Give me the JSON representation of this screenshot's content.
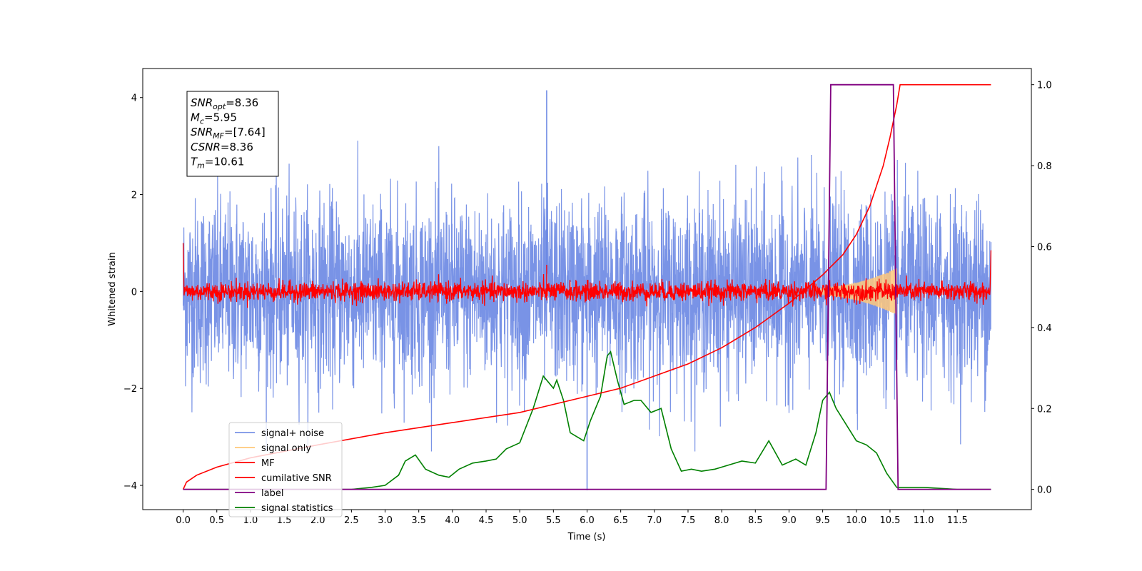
{
  "chart_data": {
    "type": "line",
    "title": "",
    "xlabel": "Time (s)",
    "ylabel": "Whitened strain",
    "y2label": "",
    "xlim": [
      -0.6,
      12.6
    ],
    "ylim": [
      -4.5,
      4.6
    ],
    "y2lim": [
      -0.05,
      1.04
    ],
    "xticks": [
      "0.0",
      "0.5",
      "1.0",
      "1.5",
      "2.0",
      "2.5",
      "3.0",
      "3.5",
      "4.0",
      "4.5",
      "5.0",
      "5.5",
      "6.0",
      "6.5",
      "7.0",
      "7.5",
      "8.0",
      "8.5",
      "9.0",
      "9.5",
      "10.0",
      "10.5",
      "11.0",
      "11.5"
    ],
    "yticks": [
      "−4",
      "−2",
      "0",
      "2",
      "4"
    ],
    "y2ticks": [
      "0.0",
      "0.2",
      "0.4",
      "0.6",
      "0.8",
      "1.0"
    ],
    "grid": false,
    "legend_position": "lower-left",
    "legend": [
      {
        "name": "signal+ noise",
        "color": "#6a87e3"
      },
      {
        "name": "signal only",
        "color": "#ffc87a"
      },
      {
        "name": "MF",
        "color": "#ff0000"
      },
      {
        "name": "cumilative SNR",
        "color": "#ff0000"
      },
      {
        "name": "label",
        "color": "#800080"
      },
      {
        "name": "signal statistics",
        "color": "#008000"
      }
    ],
    "annotation": [
      {
        "base": "SNR",
        "sub": "opt",
        "value": "=8.36"
      },
      {
        "base": "M",
        "sub": "c",
        "value": "=5.95"
      },
      {
        "base": "SNR",
        "sub": "MF",
        "value": "=[7.64]"
      },
      {
        "base": "CSNR",
        "sub": "",
        "value": "=8.36"
      },
      {
        "base": "T",
        "sub": "m",
        "value": "=10.61"
      }
    ],
    "noise": {
      "t_start": 0.0,
      "t_end": 12.0,
      "std": 1.0,
      "max": 4.15,
      "min": -4.1
    },
    "signal_envelope": {
      "t": [
        9.4,
        9.8,
        10.0,
        10.2,
        10.4,
        10.6
      ],
      "amp": [
        0.05,
        0.12,
        0.18,
        0.26,
        0.36,
        0.48
      ]
    },
    "mf_noise": {
      "t_start": 0.0,
      "t_end": 12.0,
      "std": 0.1,
      "start_value": 1.0,
      "end_value": 0.85
    },
    "cumulative_snr": {
      "axis": "right",
      "x": [
        0.0,
        0.05,
        0.2,
        0.5,
        1.0,
        2.0,
        3.0,
        4.0,
        5.0,
        6.0,
        6.5,
        7.0,
        7.5,
        8.0,
        8.5,
        9.0,
        9.5,
        9.8,
        10.0,
        10.2,
        10.4,
        10.5,
        10.6,
        10.65,
        12.0
      ],
      "y": [
        0.0,
        0.018,
        0.035,
        0.055,
        0.078,
        0.11,
        0.14,
        0.165,
        0.19,
        0.23,
        0.25,
        0.28,
        0.31,
        0.35,
        0.4,
        0.46,
        0.53,
        0.58,
        0.63,
        0.7,
        0.8,
        0.87,
        0.95,
        1.0,
        1.0
      ]
    },
    "label_series": {
      "axis": "right",
      "x": [
        0.0,
        9.55,
        9.62,
        10.55,
        10.62,
        12.0
      ],
      "y": [
        0.0,
        0.0,
        1.0,
        1.0,
        0.0,
        0.0
      ]
    },
    "signal_statistics": {
      "axis": "right",
      "x": [
        0.0,
        2.5,
        2.8,
        3.0,
        3.2,
        3.3,
        3.45,
        3.6,
        3.8,
        3.95,
        4.1,
        4.3,
        4.5,
        4.65,
        4.8,
        5.0,
        5.2,
        5.35,
        5.5,
        5.55,
        5.65,
        5.75,
        5.85,
        5.95,
        6.05,
        6.2,
        6.3,
        6.35,
        6.45,
        6.55,
        6.7,
        6.8,
        6.95,
        7.1,
        7.25,
        7.4,
        7.55,
        7.7,
        7.9,
        8.1,
        8.3,
        8.5,
        8.7,
        8.9,
        9.1,
        9.25,
        9.4,
        9.5,
        9.6,
        9.7,
        9.85,
        10.0,
        10.15,
        10.3,
        10.45,
        10.6,
        10.8,
        11.0,
        11.5,
        12.0
      ],
      "y": [
        0.0,
        0.0,
        0.005,
        0.01,
        0.035,
        0.07,
        0.085,
        0.05,
        0.035,
        0.03,
        0.05,
        0.065,
        0.07,
        0.075,
        0.1,
        0.115,
        0.2,
        0.28,
        0.25,
        0.27,
        0.22,
        0.14,
        0.13,
        0.12,
        0.17,
        0.23,
        0.33,
        0.34,
        0.27,
        0.21,
        0.22,
        0.22,
        0.19,
        0.2,
        0.1,
        0.045,
        0.05,
        0.045,
        0.05,
        0.06,
        0.07,
        0.065,
        0.12,
        0.06,
        0.075,
        0.06,
        0.14,
        0.22,
        0.24,
        0.2,
        0.16,
        0.12,
        0.11,
        0.09,
        0.04,
        0.005,
        0.005,
        0.005,
        0.0,
        0.0
      ]
    }
  }
}
